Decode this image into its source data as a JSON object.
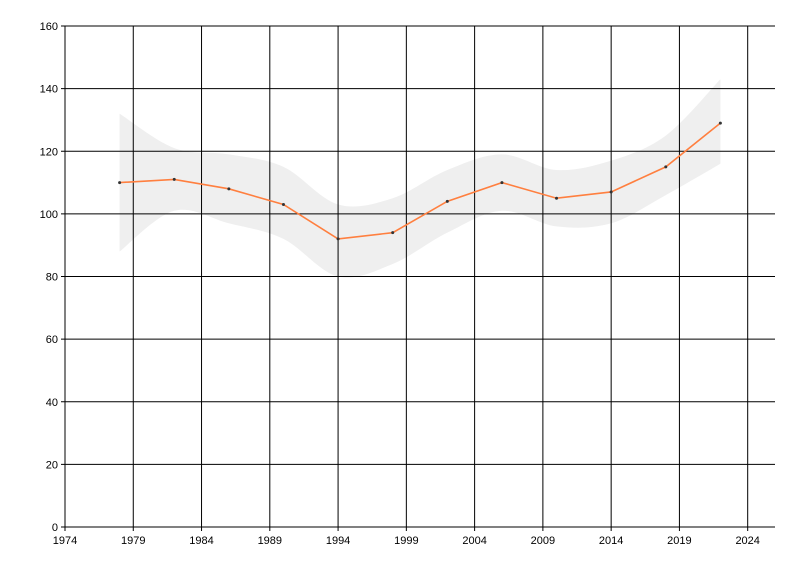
{
  "chart_data": {
    "type": "line",
    "x": [
      1978,
      1982,
      1986,
      1990,
      1994,
      1998,
      2002,
      2006,
      2010,
      2014,
      2018,
      2022
    ],
    "series": [
      {
        "color": "#ff7f3f",
        "values": [
          110,
          111,
          108,
          103,
          92,
          94,
          104,
          110,
          105,
          107,
          115,
          129
        ]
      }
    ],
    "band": {
      "color": "#efefef",
      "upper": [
        132,
        121,
        119,
        115,
        103,
        105,
        114,
        119,
        114,
        117,
        125,
        143
      ],
      "lower": [
        88,
        101,
        97,
        92,
        80,
        84,
        94,
        101,
        96,
        97,
        106,
        116
      ]
    },
    "xlim": [
      1974,
      2026
    ],
    "xticks": [
      1974,
      1979,
      1984,
      1989,
      1994,
      1999,
      2004,
      2009,
      2014,
      2019,
      2024
    ],
    "ylim": [
      0,
      160
    ],
    "yticks": [
      0,
      20,
      40,
      60,
      80,
      100,
      120,
      140,
      160
    ],
    "grid": true
  }
}
